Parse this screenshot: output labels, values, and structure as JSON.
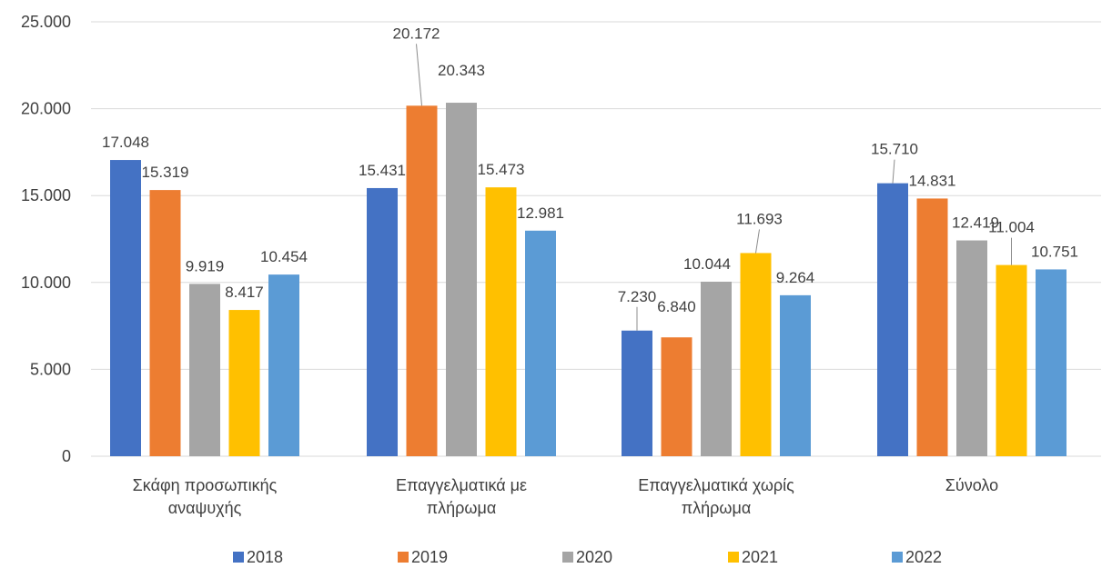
{
  "chart_data": {
    "type": "bar",
    "categories": [
      [
        "Σκάφη προσωπικής",
        "αναψυχής"
      ],
      [
        "Επαγγελματικά  με",
        "πλήρωμα"
      ],
      [
        "Επαγγελματικά χωρίς",
        "πλήρωμα"
      ],
      [
        "Σύνολο"
      ]
    ],
    "series": [
      {
        "name": "2018",
        "color": "#4472c4",
        "values": [
          17048,
          15431,
          7230,
          15710
        ],
        "labels": [
          "17.048",
          "15.431",
          "7.230",
          "15.710"
        ]
      },
      {
        "name": "2019",
        "color": "#ed7d31",
        "values": [
          15319,
          20172,
          6840,
          14831
        ],
        "labels": [
          "15.319",
          "20.172",
          "6.840",
          "14.831"
        ]
      },
      {
        "name": "2020",
        "color": "#a5a5a5",
        "values": [
          9919,
          20343,
          10044,
          12419
        ],
        "labels": [
          "9.919",
          "20.343",
          "10.044",
          "12.419"
        ]
      },
      {
        "name": "2021",
        "color": "#ffc000",
        "values": [
          8417,
          15473,
          11693,
          11004
        ],
        "labels": [
          "8.417",
          "15.473",
          "11.693",
          "11.004"
        ]
      },
      {
        "name": "2022",
        "color": "#5b9bd5",
        "values": [
          10454,
          12981,
          9264,
          10751
        ],
        "labels": [
          "10.454",
          "12.981",
          "9.264",
          "10.751"
        ]
      }
    ],
    "yticks": [
      0,
      5000,
      10000,
      15000,
      20000,
      25000
    ],
    "ytick_labels": [
      "0",
      "5.000",
      "10.000",
      "15.000",
      "20.000",
      "25.000"
    ],
    "ylim": [
      0,
      25000
    ],
    "grid": true,
    "legend_position": "bottom"
  }
}
